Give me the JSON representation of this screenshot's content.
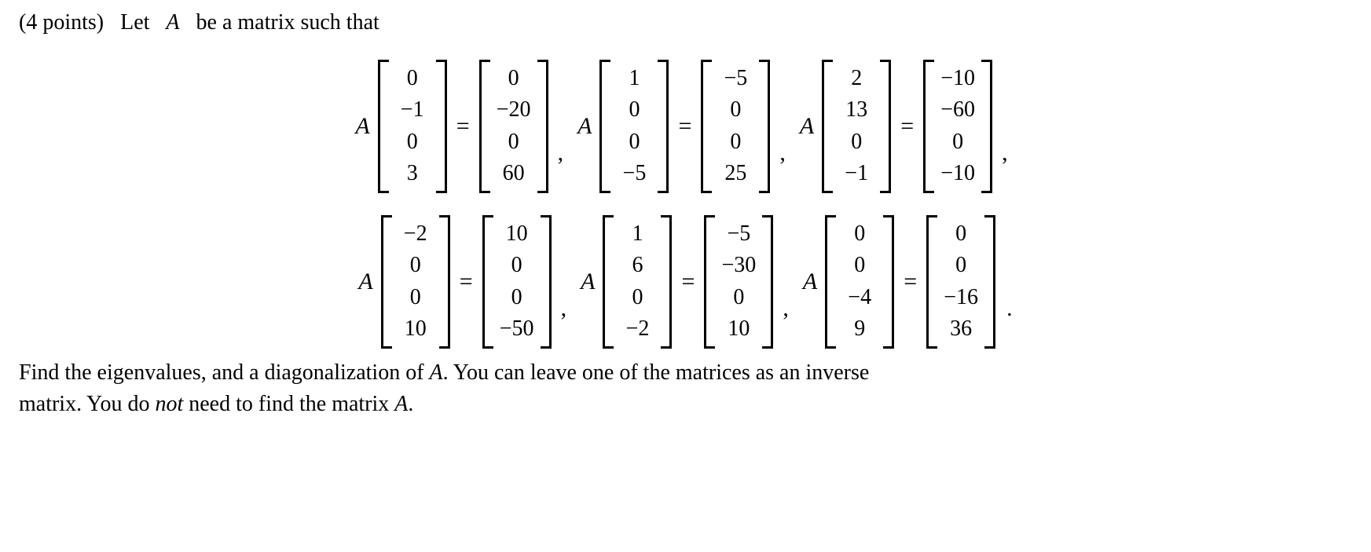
{
  "points_label": "(4 points)",
  "intro_prefix": "Let",
  "intro_A": "A",
  "intro_suffix": "be a matrix such that",
  "eq_rows": [
    [
      {
        "in": [
          "0",
          "−1",
          "0",
          "3"
        ],
        "out": [
          "0",
          "−20",
          "0",
          "60"
        ]
      },
      {
        "in": [
          "1",
          "0",
          "0",
          "−5"
        ],
        "out": [
          "−5",
          "0",
          "0",
          "25"
        ]
      },
      {
        "in": [
          "2",
          "13",
          "0",
          "−1"
        ],
        "out": [
          "−10",
          "−60",
          "0",
          "−10"
        ]
      }
    ],
    [
      {
        "in": [
          "−2",
          "0",
          "0",
          "10"
        ],
        "out": [
          "10",
          "0",
          "0",
          "−50"
        ]
      },
      {
        "in": [
          "1",
          "6",
          "0",
          "−2"
        ],
        "out": [
          "−5",
          "−30",
          "0",
          "10"
        ]
      },
      {
        "in": [
          "0",
          "0",
          "−4",
          "9"
        ],
        "out": [
          "0",
          "0",
          "−16",
          "36"
        ]
      }
    ]
  ],
  "concl_line1_parts": {
    "p1": "Find the eigenvalues, and a diagonalization of ",
    "A1": "A",
    "p2": ". You can leave one of the matrices as an inverse"
  },
  "concl_line2_parts": {
    "p1": "matrix. You do ",
    "not": "not",
    "p2": " need to find the matrix ",
    "A2": "A",
    "p3": "."
  }
}
